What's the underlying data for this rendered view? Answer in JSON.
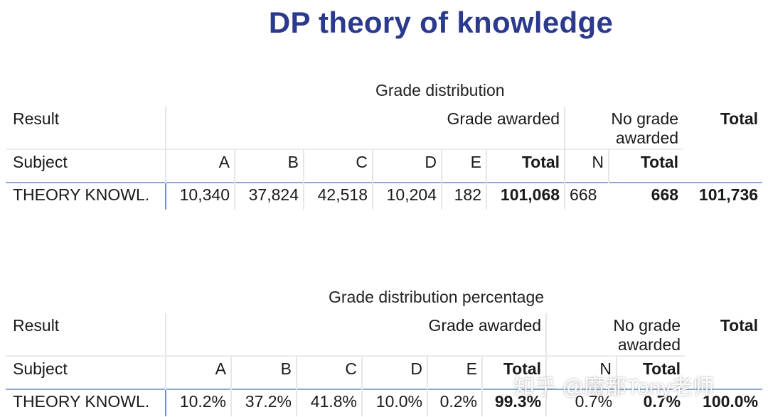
{
  "title": "DP theory of knowledge",
  "tables": [
    {
      "caption": "Grade distribution",
      "header": {
        "result_label": "Result",
        "grade_awarded": "Grade awarded",
        "no_grade_line1": "No grade",
        "no_grade_line2": "awarded",
        "total": "Total",
        "subject_label": "Subject",
        "cols": [
          "A",
          "B",
          "C",
          "D",
          "E",
          "Total",
          "N",
          "Total"
        ]
      },
      "row": {
        "subject": "THEORY KNOWL.",
        "values": [
          "10,340",
          "37,824",
          "42,518",
          "10,204",
          "182",
          "101,068",
          "668",
          "668",
          "101,736"
        ]
      }
    },
    {
      "caption": "Grade distribution percentage",
      "header": {
        "result_label": "Result",
        "grade_awarded": "Grade awarded",
        "no_grade_line1": "No grade",
        "no_grade_line2": "awarded",
        "total": "Total",
        "subject_label": "Subject",
        "cols": [
          "A",
          "B",
          "C",
          "D",
          "E",
          "Total",
          "N",
          "Total"
        ]
      },
      "row": {
        "subject": "THEORY KNOWL.",
        "values": [
          "10.2%",
          "37.2%",
          "41.8%",
          "10.0%",
          "0.2%",
          "99.3%",
          "0.7%",
          "0.7%",
          "100.0%"
        ]
      }
    }
  ],
  "watermark": "知乎 @魔都Tony老师"
}
